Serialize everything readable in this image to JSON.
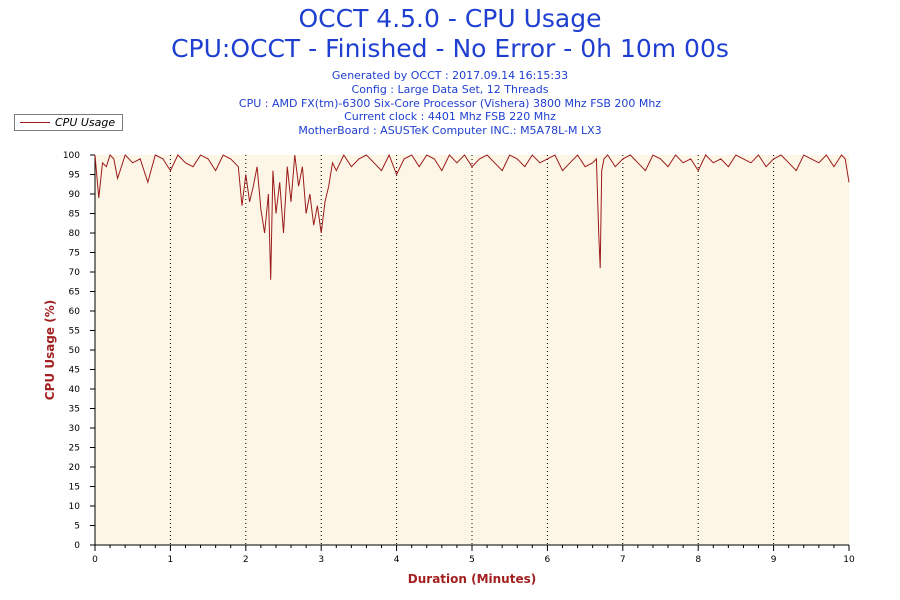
{
  "header": {
    "title": "OCCT 4.5.0 - CPU Usage",
    "subtitle": "CPU:OCCT - Finished - No Error - 0h 10m 00s",
    "info": [
      "Generated by OCCT : 2017.09.14 16:15:33",
      "Config : Large Data Set, 12 Threads",
      "CPU : AMD FX(tm)-6300 Six-Core Processor (Vishera) 3800 Mhz FSB 200 Mhz",
      "Current clock : 4401 Mhz FSB 220 Mhz",
      "MotherBoard : ASUSTeK Computer INC.: M5A78L-M LX3"
    ]
  },
  "colors": {
    "line": "#9b1b1b",
    "plot_bg": "#fdf6e6",
    "title": "#1f3fd0",
    "axis_title": "#a32020"
  },
  "chart_data": {
    "type": "line",
    "title": "OCCT 4.5.0 - CPU Usage",
    "xlabel": "Duration (Minutes)",
    "ylabel": "CPU Usage (%)",
    "xlim": [
      0,
      10
    ],
    "ylim": [
      0,
      100
    ],
    "x_ticks": [
      "0",
      "1",
      "2",
      "3",
      "4",
      "5",
      "6",
      "7",
      "8",
      "9",
      "10"
    ],
    "y_ticks": [
      "0",
      "5",
      "10",
      "15",
      "20",
      "25",
      "30",
      "35",
      "40",
      "45",
      "50",
      "55",
      "60",
      "65",
      "70",
      "75",
      "80",
      "85",
      "90",
      "95",
      "100"
    ],
    "grid": "vertical dotted at each minute",
    "legend": "top-left",
    "series": [
      {
        "name": "CPU Usage",
        "x": [
          0,
          0.05,
          0.1,
          0.15,
          0.2,
          0.25,
          0.3,
          0.4,
          0.5,
          0.6,
          0.7,
          0.8,
          0.9,
          1.0,
          1.1,
          1.2,
          1.3,
          1.4,
          1.5,
          1.6,
          1.7,
          1.8,
          1.9,
          1.95,
          2.0,
          2.05,
          2.1,
          2.15,
          2.2,
          2.25,
          2.3,
          2.33,
          2.36,
          2.4,
          2.45,
          2.5,
          2.55,
          2.6,
          2.65,
          2.7,
          2.75,
          2.8,
          2.85,
          2.9,
          2.95,
          3.0,
          3.05,
          3.1,
          3.15,
          3.2,
          3.3,
          3.4,
          3.5,
          3.6,
          3.7,
          3.8,
          3.9,
          4.0,
          4.1,
          4.2,
          4.3,
          4.4,
          4.5,
          4.6,
          4.7,
          4.8,
          4.9,
          5.0,
          5.1,
          5.2,
          5.3,
          5.4,
          5.5,
          5.6,
          5.7,
          5.8,
          5.9,
          6.0,
          6.1,
          6.2,
          6.3,
          6.4,
          6.5,
          6.6,
          6.65,
          6.68,
          6.7,
          6.72,
          6.75,
          6.8,
          6.9,
          7.0,
          7.1,
          7.2,
          7.3,
          7.4,
          7.5,
          7.6,
          7.7,
          7.8,
          7.9,
          8.0,
          8.1,
          8.2,
          8.3,
          8.4,
          8.5,
          8.6,
          8.7,
          8.8,
          8.9,
          9.0,
          9.1,
          9.2,
          9.3,
          9.4,
          9.5,
          9.6,
          9.7,
          9.8,
          9.9,
          9.95,
          10.0
        ],
        "values": [
          100,
          89,
          98,
          97,
          100,
          99,
          94,
          100,
          98,
          99,
          93,
          100,
          99,
          96,
          100,
          98,
          97,
          100,
          99,
          96,
          100,
          99,
          97,
          87,
          95,
          88,
          92,
          97,
          86,
          80,
          90,
          68,
          96,
          85,
          93,
          80,
          97,
          88,
          100,
          92,
          97,
          85,
          90,
          82,
          87,
          80,
          88,
          92,
          98,
          96,
          100,
          97,
          99,
          100,
          98,
          96,
          100,
          95,
          99,
          100,
          97,
          100,
          99,
          96,
          100,
          98,
          100,
          97,
          99,
          100,
          98,
          96,
          100,
          99,
          97,
          100,
          98,
          99,
          100,
          96,
          98,
          100,
          97,
          98,
          99,
          80,
          71,
          96,
          99,
          100,
          97,
          99,
          100,
          98,
          96,
          100,
          99,
          97,
          100,
          98,
          99,
          96,
          100,
          98,
          99,
          97,
          100,
          99,
          98,
          100,
          97,
          99,
          100,
          98,
          96,
          100,
          99,
          98,
          100,
          97,
          100,
          99,
          93
        ]
      }
    ]
  }
}
